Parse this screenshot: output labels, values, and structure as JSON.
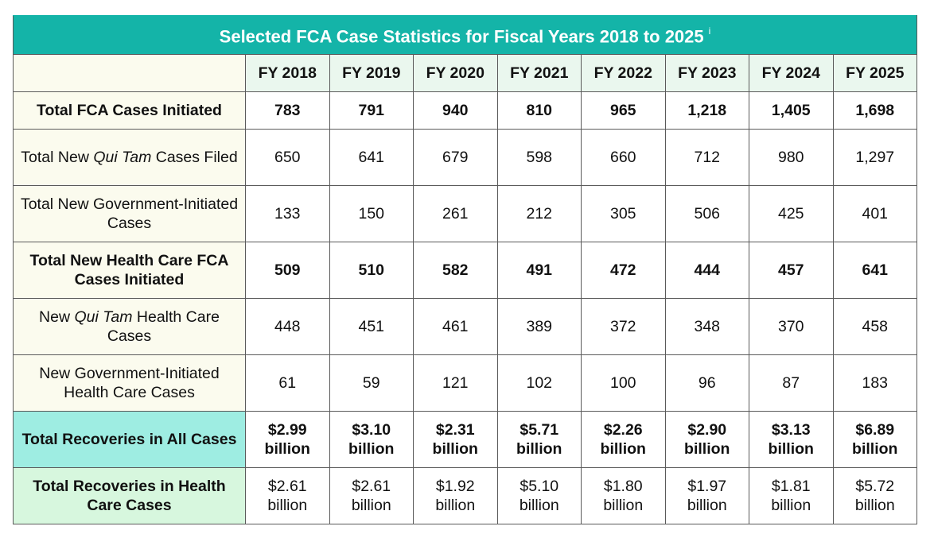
{
  "chart_data": {
    "type": "table",
    "title": "Selected FCA Case Statistics for Fiscal Years 2018 to 2025",
    "title_note": "i",
    "columns": [
      "FY 2018",
      "FY 2019",
      "FY 2020",
      "FY 2021",
      "FY 2022",
      "FY 2023",
      "FY 2024",
      "FY 2025"
    ],
    "rows": [
      {
        "label_pre": "Total FCA Cases Initiated",
        "label_italic": "",
        "label_post": "",
        "bold": true,
        "values": [
          "783",
          "791",
          "940",
          "810",
          "965",
          "1,218",
          "1,405",
          "1,698"
        ]
      },
      {
        "label_pre": "Total New ",
        "label_italic": "Qui Tam",
        "label_post": " Cases Filed",
        "bold": false,
        "values": [
          "650",
          "641",
          "679",
          "598",
          "660",
          "712",
          "980",
          "1,297"
        ]
      },
      {
        "label_pre": "Total New Government-Initiated Cases",
        "label_italic": "",
        "label_post": "",
        "bold": false,
        "values": [
          "133",
          "150",
          "261",
          "212",
          "305",
          "506",
          "425",
          "401"
        ]
      },
      {
        "label_pre": "Total New Health Care FCA Cases Initiated",
        "label_italic": "",
        "label_post": "",
        "bold": true,
        "values": [
          "509",
          "510",
          "582",
          "491",
          "472",
          "444",
          "457",
          "641"
        ]
      },
      {
        "label_pre": "New ",
        "label_italic": "Qui Tam",
        "label_post": " Health Care Cases",
        "bold": false,
        "values": [
          "448",
          "451",
          "461",
          "389",
          "372",
          "348",
          "370",
          "458"
        ]
      },
      {
        "label_pre": "New Government-Initiated Health Care Cases",
        "label_italic": "",
        "label_post": "",
        "bold": false,
        "values": [
          "61",
          "59",
          "121",
          "102",
          "100",
          "96",
          "87",
          "183"
        ]
      },
      {
        "label_pre": "Total Recoveries in All Cases",
        "label_italic": "",
        "label_post": "",
        "bold": true,
        "values": [
          "$2.99 billion",
          "$3.10 billion",
          "$2.31 billion",
          "$5.71 billion",
          "$2.26 billion",
          "$2.90 billion",
          "$3.13 billion",
          "$6.89 billion"
        ]
      },
      {
        "label_pre": "Total Recoveries in Health Care Cases",
        "label_italic": "",
        "label_post": "",
        "bold": false,
        "values": [
          "$2.61 billion",
          "$2.61 billion",
          "$1.92 billion",
          "$5.10 billion",
          "$1.80 billion",
          "$1.97 billion",
          "$1.81 billion",
          "$5.72 billion"
        ]
      }
    ]
  },
  "colors": {
    "title_bg": "#14b4a8",
    "label_bg": "#fbfbee",
    "header_bg": "#eaf7ee",
    "recoveries_all_label_bg": "#9eede2",
    "recoveries_health_label_bg": "#d7f7de"
  }
}
